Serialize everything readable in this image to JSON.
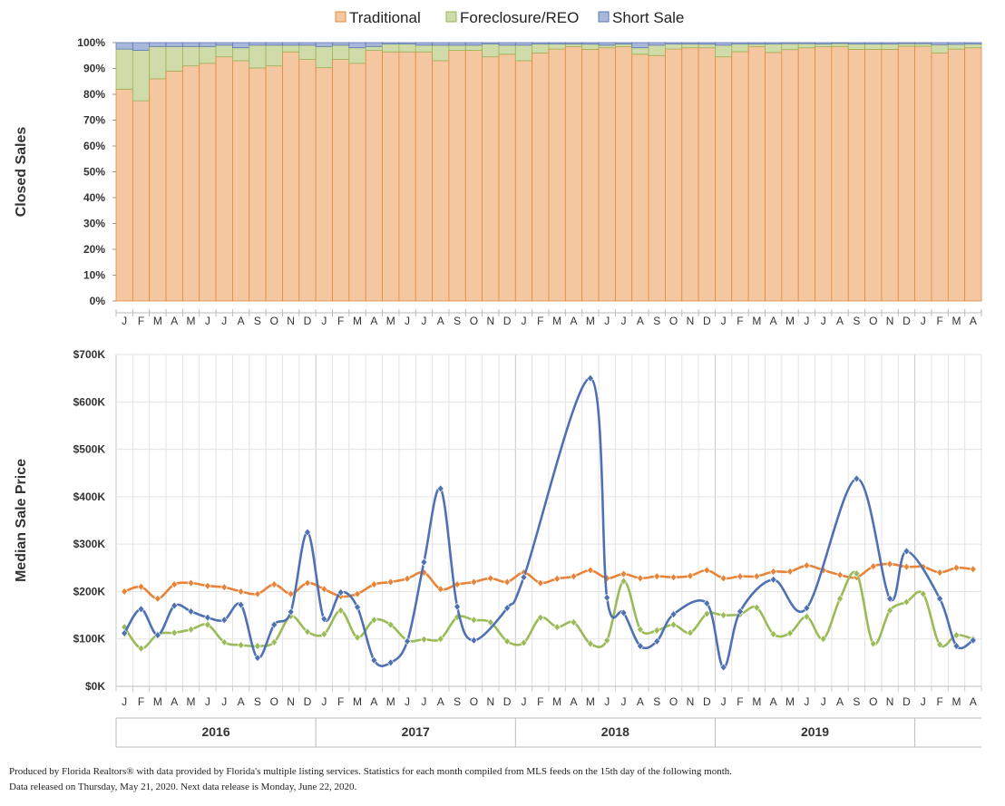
{
  "chart_data": [
    {
      "type": "bar",
      "stacked": true,
      "ylabel": "Closed Sales",
      "ylim": [
        0,
        100
      ],
      "ytick_labels": [
        "0%",
        "10%",
        "20%",
        "30%",
        "40%",
        "50%",
        "60%",
        "70%",
        "80%",
        "90%",
        "100%"
      ],
      "month_labels": [
        "J",
        "F",
        "M",
        "A",
        "M",
        "J",
        "J",
        "A",
        "S",
        "O",
        "N",
        "D",
        "J",
        "F",
        "M",
        "A",
        "M",
        "J",
        "J",
        "A",
        "S",
        "O",
        "N",
        "D",
        "J",
        "F",
        "M",
        "A",
        "M",
        "J",
        "J",
        "A",
        "S",
        "O",
        "N",
        "D",
        "J",
        "F",
        "M",
        "A",
        "M",
        "J",
        "J",
        "A",
        "S",
        "O",
        "N",
        "D",
        "J",
        "F",
        "M",
        "A"
      ],
      "legend": {
        "position": "top"
      },
      "series": [
        {
          "name": "Traditional",
          "color": "#f4c7a1",
          "edge": "#e08a3c",
          "values": [
            82.0,
            77.5,
            86.0,
            89.0,
            91.0,
            92.0,
            94.5,
            93.0,
            90.2,
            91.0,
            96.4,
            93.5,
            90.3,
            93.5,
            92.0,
            97.0,
            96.4,
            96.4,
            96.4,
            93.0,
            97.0,
            97.0,
            94.5,
            95.5,
            93.0,
            96.0,
            97.5,
            98.5,
            97.4,
            98.0,
            98.5,
            95.5,
            95.0,
            97.5,
            98.0,
            98.0,
            94.5,
            96.5,
            98.5,
            96.2,
            97.3,
            98.0,
            98.4,
            98.5,
            97.4,
            97.4,
            97.4,
            98.6,
            98.6,
            96.0,
            97.5,
            98.0
          ]
        },
        {
          "name": "Foreclosure/REO",
          "color": "#cfdcaa",
          "edge": "#9bb35a",
          "values": [
            15.5,
            19.5,
            12.5,
            9.5,
            7.5,
            6.5,
            4.5,
            5.0,
            8.8,
            8.0,
            2.6,
            5.5,
            8.2,
            5.5,
            6.0,
            1.5,
            3.1,
            3.1,
            2.6,
            6.0,
            2.0,
            2.0,
            5.0,
            3.5,
            6.0,
            3.5,
            2.0,
            1.0,
            2.0,
            1.0,
            1.0,
            2.5,
            4.0,
            2.0,
            1.5,
            1.4,
            4.5,
            3.0,
            1.0,
            3.3,
            2.3,
            1.6,
            1.1,
            1.2,
            2.1,
            2.1,
            2.1,
            1.0,
            1.0,
            3.2,
            1.8,
            1.5
          ]
        },
        {
          "name": "Short Sale",
          "color": "#a9b7da",
          "edge": "#5d78b4",
          "values": [
            2.5,
            3.0,
            1.5,
            1.5,
            1.5,
            1.5,
            1.0,
            2.0,
            1.0,
            1.0,
            1.0,
            1.0,
            1.5,
            1.0,
            2.0,
            1.5,
            0.5,
            0.5,
            1.0,
            1.0,
            1.0,
            1.0,
            0.5,
            1.0,
            1.0,
            0.5,
            0.5,
            0.5,
            0.6,
            1.0,
            0.5,
            2.0,
            1.0,
            0.5,
            0.5,
            0.6,
            1.0,
            0.5,
            0.5,
            0.5,
            0.4,
            0.4,
            0.5,
            0.3,
            0.5,
            0.5,
            0.5,
            0.4,
            0.4,
            0.8,
            0.7,
            0.5
          ]
        }
      ]
    },
    {
      "type": "line",
      "ylabel": "Median Sale Price",
      "ylim": [
        0,
        700
      ],
      "ytick_labels": [
        "$0K",
        "$100K",
        "$200K",
        "$300K",
        "$400K",
        "$500K",
        "$600K",
        "$700K"
      ],
      "month_labels": [
        "J",
        "F",
        "M",
        "A",
        "M",
        "J",
        "J",
        "A",
        "S",
        "O",
        "N",
        "D",
        "J",
        "F",
        "M",
        "A",
        "M",
        "J",
        "J",
        "A",
        "S",
        "O",
        "N",
        "D",
        "J",
        "F",
        "M",
        "A",
        "M",
        "J",
        "J",
        "A",
        "S",
        "O",
        "N",
        "D",
        "J",
        "F",
        "M",
        "A",
        "M",
        "J",
        "J",
        "A",
        "S",
        "O",
        "N",
        "D",
        "J",
        "F",
        "M",
        "A"
      ],
      "years": [
        "2016",
        "2017",
        "2018",
        "2019"
      ],
      "series": [
        {
          "name": "Traditional",
          "color": "#e8843a",
          "values": [
            200,
            210,
            185,
            215,
            218,
            212,
            209,
            200,
            195,
            215,
            195,
            218,
            205,
            190,
            195,
            215,
            220,
            227,
            240,
            205,
            215,
            220,
            228,
            220,
            240,
            218,
            227,
            232,
            245,
            228,
            237,
            228,
            232,
            230,
            233,
            245,
            228,
            232,
            232,
            242,
            242,
            255,
            245,
            235,
            230,
            253,
            258,
            252,
            252,
            240,
            250,
            247
          ]
        },
        {
          "name": "Foreclosure/REO",
          "color": "#9bbb59",
          "values": [
            125,
            80,
            110,
            113,
            120,
            130,
            93,
            87,
            85,
            93,
            148,
            115,
            110,
            160,
            103,
            140,
            130,
            97,
            99,
            100,
            146,
            140,
            135,
            95,
            92,
            145,
            125,
            135,
            90,
            97,
            222,
            120,
            118,
            130,
            113,
            153,
            150,
            152,
            166,
            110,
            112,
            147,
            100,
            185,
            238,
            90,
            160,
            178,
            195,
            88,
            108,
            100
          ]
        },
        {
          "name": "Short Sale",
          "color": "#4f71b4",
          "values": [
            112,
            163,
            108,
            170,
            158,
            145,
            140,
            172,
            60,
            130,
            157,
            325,
            142,
            198,
            167,
            55,
            50,
            95,
            262,
            417,
            168,
            97,
            null,
            165,
            230,
            null,
            null,
            null,
            650,
            187,
            155,
            85,
            95,
            152,
            null,
            175,
            40,
            158,
            null,
            225,
            null,
            165,
            null,
            null,
            438,
            null,
            185,
            285,
            null,
            185,
            85,
            97
          ]
        }
      ]
    }
  ],
  "footnote": {
    "line1": "Produced by Florida Realtors® with data provided by Florida's multiple listing services. Statistics for each month compiled from MLS feeds on the 15th day of the following month.",
    "line2": "Data released on Thursday, May 21, 2020. Next data release is Monday, June 22, 2020."
  }
}
